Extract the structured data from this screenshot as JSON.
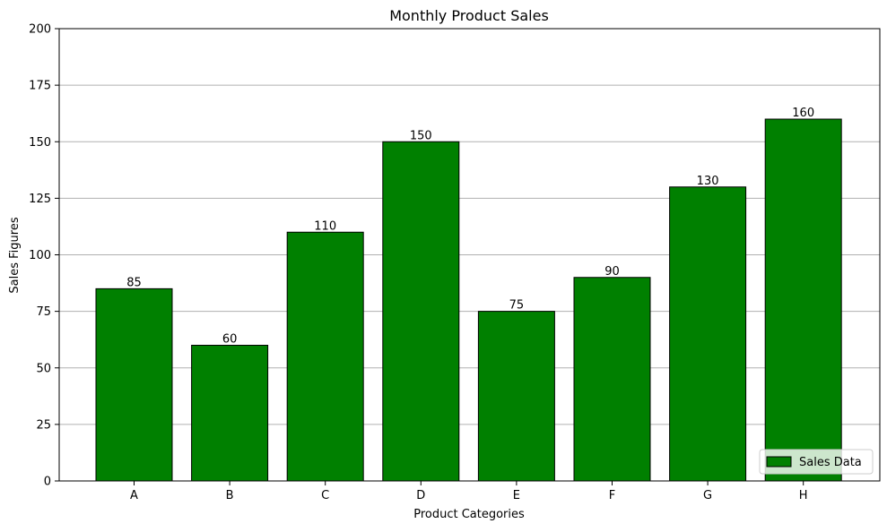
{
  "chart_data": {
    "type": "bar",
    "title": "Monthly Product Sales",
    "xlabel": "Product Categories",
    "ylabel": "Sales Figures",
    "categories": [
      "A",
      "B",
      "C",
      "D",
      "E",
      "F",
      "G",
      "H"
    ],
    "series": [
      {
        "name": "Sales Data",
        "values": [
          85,
          60,
          110,
          150,
          75,
          90,
          130,
          160
        ]
      }
    ],
    "ylim": [
      0,
      200
    ],
    "yticks": [
      0,
      25,
      50,
      75,
      100,
      125,
      150,
      175,
      200
    ],
    "grid": "y-axis only",
    "legend_position": "lower-right",
    "data_labels": true,
    "colors": {
      "bar_fill": "#008000",
      "bar_edge": "#000000",
      "grid": "#b0b0b0",
      "axes": "#000000"
    }
  }
}
